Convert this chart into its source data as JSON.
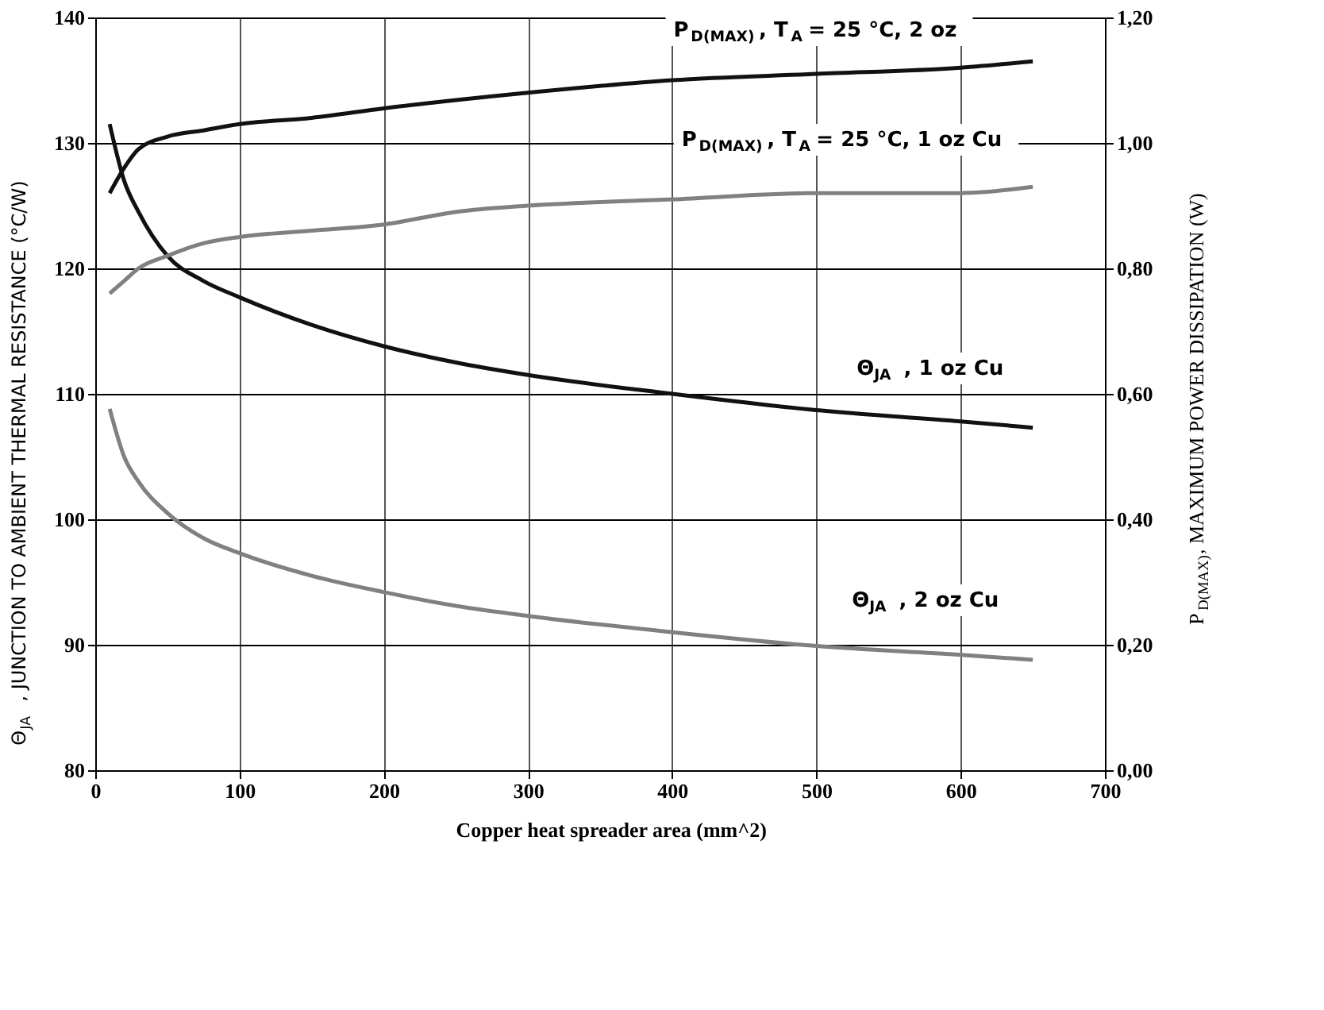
{
  "chart_data": {
    "type": "line",
    "xlabel": "Copper heat spreader area (mm^2)",
    "ylabel": "Θ$_{JA}$, JUNCTION TO AMBIENT THERMAL RESISTANCE (°C/W)",
    "y2label": "P$_{D(MAX)}$, MAXIMUM POWER DISSIPATION  (W)",
    "xlim": [
      0,
      700
    ],
    "xticks": [
      0,
      100,
      200,
      300,
      400,
      500,
      600,
      700
    ],
    "ylim": [
      80,
      140
    ],
    "yticks": [
      80,
      90,
      100,
      110,
      120,
      130,
      140
    ],
    "y2lim": [
      0,
      1.2
    ],
    "y2ticks": [
      {
        "value": 0,
        "label": "0,00"
      },
      {
        "value": 0.2,
        "label": "0,20"
      },
      {
        "value": 0.4,
        "label": "0,40"
      },
      {
        "value": 0.6,
        "label": "0,60"
      },
      {
        "value": 0.8,
        "label": "0,80"
      },
      {
        "value": 1.0,
        "label": "1,00"
      },
      {
        "value": 1.2,
        "label": "1,20"
      }
    ],
    "grid": true,
    "legend": false,
    "marker": "none",
    "line_style": "solid",
    "series": [
      {
        "color": "#111111",
        "axis": "y2",
        "x": [
          10,
          20,
          30,
          50,
          75,
          100,
          150,
          200,
          300,
          400,
          500,
          600,
          650
        ],
        "values": [
          0.92,
          0.96,
          0.99,
          1.01,
          1.02,
          1.03,
          1.04,
          1.055,
          1.08,
          1.1,
          1.11,
          1.12,
          1.13
        ]
      },
      {
        "color": "#808080",
        "axis": "y2",
        "x": [
          10,
          20,
          30,
          50,
          75,
          100,
          150,
          200,
          250,
          300,
          400,
          500,
          600,
          650
        ],
        "values": [
          0.76,
          0.78,
          0.8,
          0.82,
          0.84,
          0.85,
          0.86,
          0.87,
          0.89,
          0.9,
          0.91,
          0.92,
          0.92,
          0.93
        ]
      },
      {
        "color": "#111111",
        "x": [
          10,
          20,
          30,
          50,
          75,
          100,
          150,
          200,
          250,
          300,
          400,
          500,
          600,
          650
        ],
        "values": [
          131.5,
          127,
          124.5,
          121,
          119,
          117.7,
          115.5,
          113.8,
          112.5,
          111.5,
          110,
          108.7,
          107.8,
          107.3
        ]
      },
      {
        "color": "#808080",
        "x": [
          10,
          20,
          30,
          50,
          75,
          100,
          150,
          200,
          250,
          300,
          400,
          500,
          600,
          650
        ],
        "values": [
          108.8,
          105,
          103,
          100.5,
          98.5,
          97.3,
          95.5,
          94.2,
          93.1,
          92.3,
          91,
          89.9,
          89.2,
          88.8
        ]
      }
    ],
    "annotations": [
      "P$_{D(MAX)}$, T$_{A}$ = 25 °C, 2 oz",
      "P$_{D(MAX)}$, T$_{A}$ = 25 °C, 1 oz Cu",
      "Θ$_{JA}$, 1 oz Cu",
      "Θ$_{JA}$, 2 oz Cu"
    ]
  }
}
